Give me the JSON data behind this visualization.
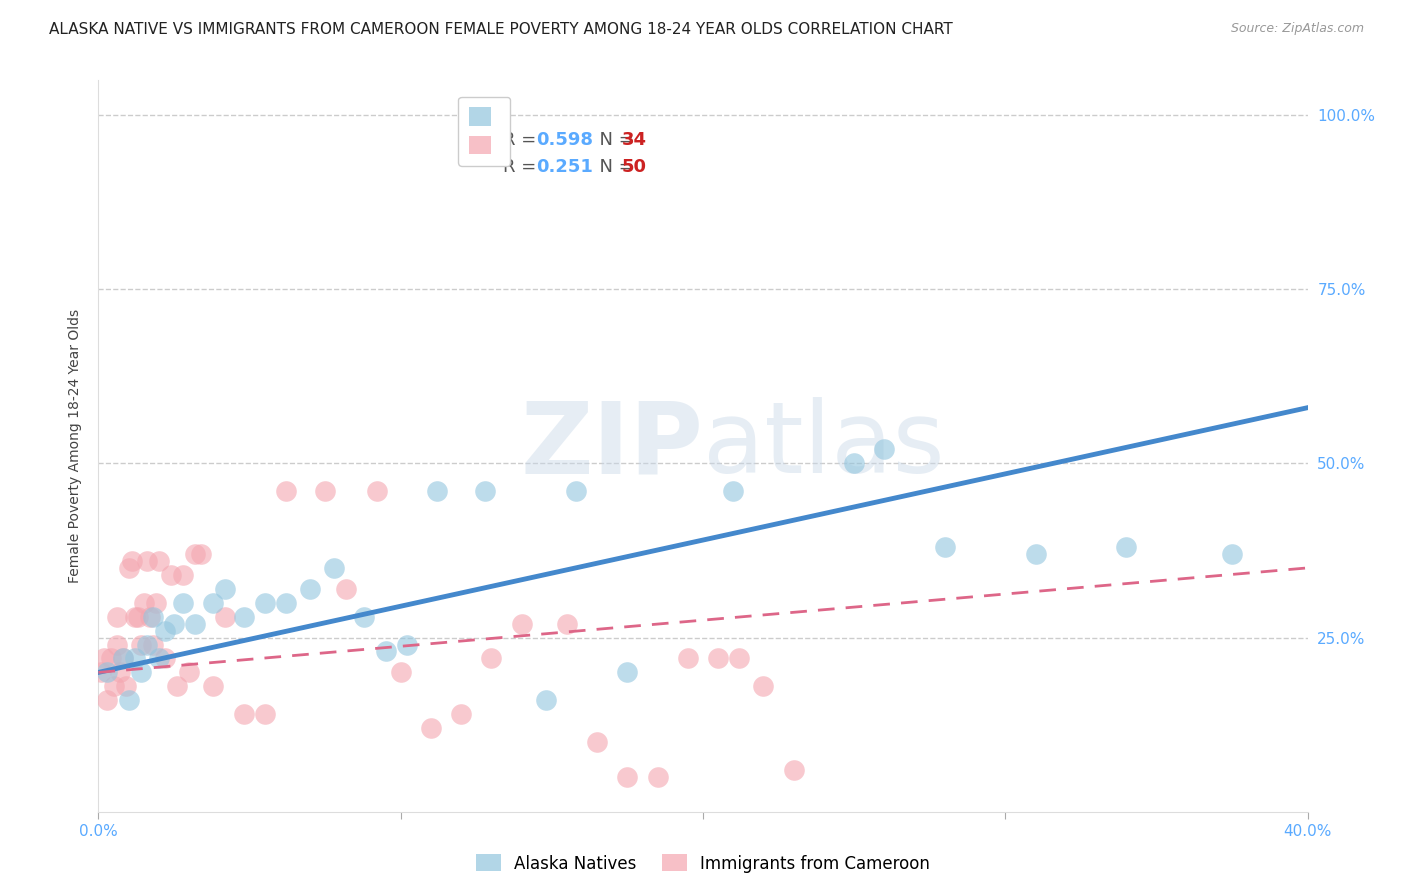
{
  "title": "ALASKA NATIVE VS IMMIGRANTS FROM CAMEROON FEMALE POVERTY AMONG 18-24 YEAR OLDS CORRELATION CHART",
  "source": "Source: ZipAtlas.com",
  "tick_color": "#5aaaff",
  "ylabel": "Female Poverty Among 18-24 Year Olds",
  "xlim": [
    0.0,
    0.4
  ],
  "ylim": [
    0.0,
    1.05
  ],
  "x_ticks": [
    0.0,
    0.1,
    0.2,
    0.3,
    0.4
  ],
  "x_tick_labels": [
    "0.0%",
    "",
    "",
    "",
    "40.0%"
  ],
  "y_ticks": [
    0.0,
    0.25,
    0.5,
    0.75,
    1.0
  ],
  "y_tick_labels": [
    "",
    "25.0%",
    "50.0%",
    "75.0%",
    "100.0%"
  ],
  "grid_color": "#cccccc",
  "background_color": "#ffffff",
  "blue_R": "0.598",
  "blue_N": "34",
  "pink_R": "0.251",
  "pink_N": "50",
  "blue_color": "#92c5de",
  "pink_color": "#f4a6b0",
  "blue_line_color": "#4488cc",
  "pink_line_color": "#dd6688",
  "blue_x": [
    0.003,
    0.008,
    0.01,
    0.012,
    0.014,
    0.016,
    0.018,
    0.02,
    0.022,
    0.025,
    0.028,
    0.032,
    0.038,
    0.042,
    0.048,
    0.055,
    0.062,
    0.07,
    0.078,
    0.088,
    0.095,
    0.102,
    0.112,
    0.128,
    0.148,
    0.158,
    0.175,
    0.21,
    0.25,
    0.26,
    0.28,
    0.31,
    0.34,
    0.375
  ],
  "blue_y": [
    0.2,
    0.22,
    0.16,
    0.22,
    0.2,
    0.24,
    0.28,
    0.22,
    0.26,
    0.27,
    0.3,
    0.27,
    0.3,
    0.32,
    0.28,
    0.3,
    0.3,
    0.32,
    0.35,
    0.28,
    0.23,
    0.24,
    0.46,
    0.46,
    0.16,
    0.46,
    0.2,
    0.46,
    0.5,
    0.52,
    0.38,
    0.37,
    0.38,
    0.37
  ],
  "pink_x": [
    0.001,
    0.002,
    0.003,
    0.004,
    0.005,
    0.006,
    0.006,
    0.007,
    0.008,
    0.009,
    0.01,
    0.011,
    0.012,
    0.013,
    0.014,
    0.015,
    0.016,
    0.017,
    0.018,
    0.019,
    0.02,
    0.022,
    0.024,
    0.026,
    0.028,
    0.03,
    0.032,
    0.034,
    0.038,
    0.042,
    0.048,
    0.055,
    0.062,
    0.075,
    0.082,
    0.092,
    0.1,
    0.11,
    0.12,
    0.13,
    0.14,
    0.155,
    0.165,
    0.175,
    0.185,
    0.195,
    0.205,
    0.212,
    0.22,
    0.23
  ],
  "pink_y": [
    0.2,
    0.22,
    0.16,
    0.22,
    0.18,
    0.28,
    0.24,
    0.2,
    0.22,
    0.18,
    0.35,
    0.36,
    0.28,
    0.28,
    0.24,
    0.3,
    0.36,
    0.28,
    0.24,
    0.3,
    0.36,
    0.22,
    0.34,
    0.18,
    0.34,
    0.2,
    0.37,
    0.37,
    0.18,
    0.28,
    0.14,
    0.14,
    0.46,
    0.46,
    0.32,
    0.46,
    0.2,
    0.12,
    0.14,
    0.22,
    0.27,
    0.27,
    0.1,
    0.05,
    0.05,
    0.22,
    0.22,
    0.22,
    0.18,
    0.06
  ],
  "blue_line_x0": 0.0,
  "blue_line_x1": 0.4,
  "blue_line_y0": 0.2,
  "blue_line_y1": 0.58,
  "pink_line_x0": 0.0,
  "pink_line_x1": 0.4,
  "pink_line_y0": 0.2,
  "pink_line_y1": 0.35,
  "title_fontsize": 11,
  "axis_label_fontsize": 10,
  "tick_fontsize": 11,
  "legend_fontsize": 13,
  "source_fontsize": 9
}
